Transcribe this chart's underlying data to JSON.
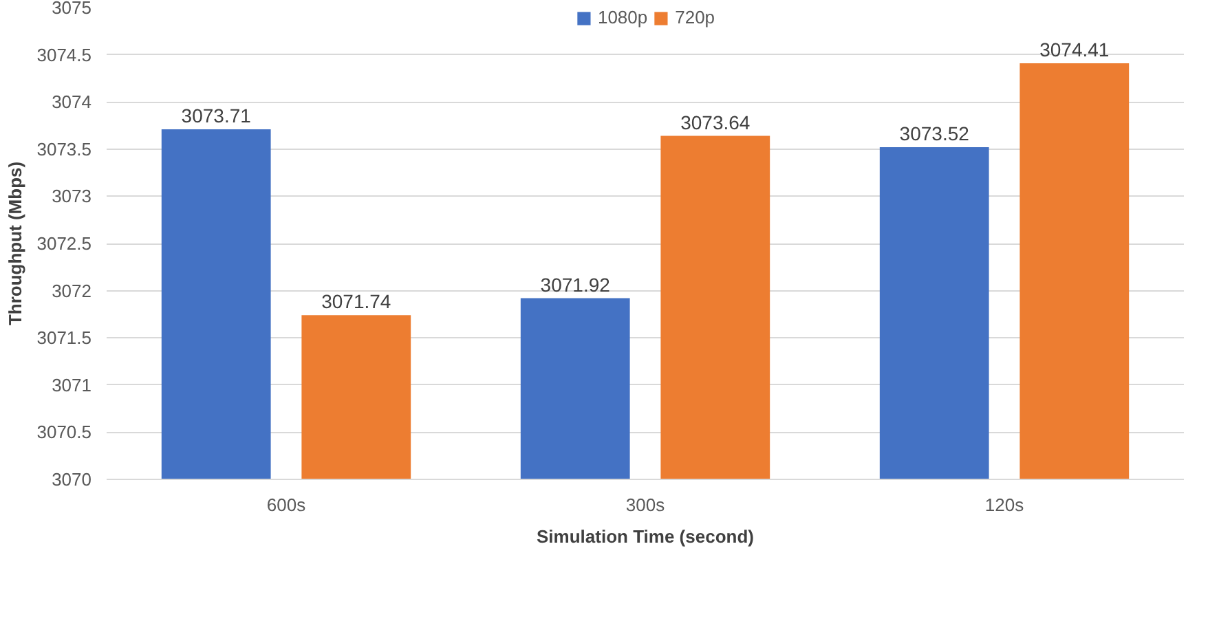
{
  "chart_data": {
    "type": "bar",
    "xlabel": "Simulation Time (second)",
    "ylabel": "Throughput (Mbps)",
    "categories": [
      "600s",
      "300s",
      "120s"
    ],
    "series": [
      {
        "name": "1080p",
        "color": "#4472c4",
        "values": [
          3073.71,
          3071.92,
          3073.52
        ]
      },
      {
        "name": "720p",
        "color": "#ed7d31",
        "values": [
          3071.74,
          3073.64,
          3074.41
        ]
      }
    ],
    "ylim": [
      3070,
      3075
    ],
    "yticks": [
      3070,
      3070.5,
      3071,
      3071.5,
      3072,
      3072.5,
      3073,
      3073.5,
      3074,
      3074.5,
      3075
    ],
    "grid": "y",
    "legend": "top",
    "data_labels": true
  }
}
